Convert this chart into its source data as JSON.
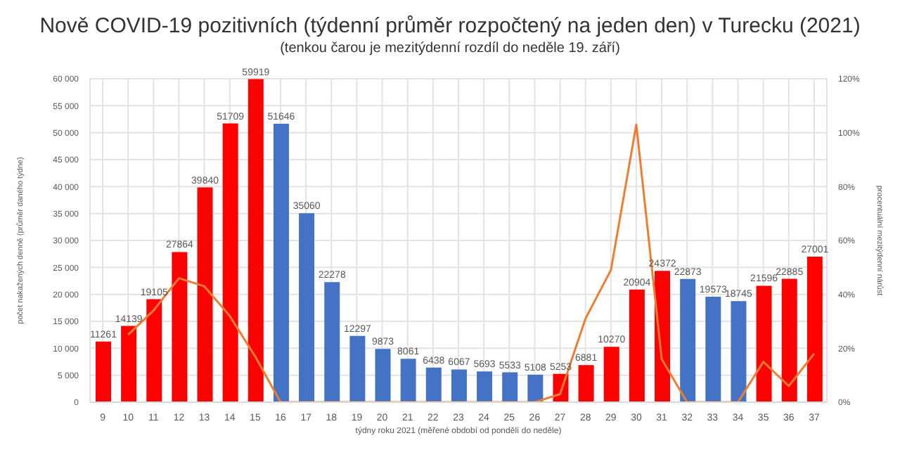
{
  "chart_data": {
    "type": "bar",
    "title": "Nově COVID-19 pozitivních (týdenní průměr rozpočtený na jeden den) v Turecku (2021)",
    "subtitle": "(tenkou čarou je mezitýdenní rozdíl do neděle 19. září)",
    "xlabel": "týdny roku 2021 (měřené období od pondělí do neděle)",
    "ylabel": "počet nakažených denně (průměr daného týdne)",
    "y2label": "procentuální mezitýdenní nárůst",
    "categories": [
      "9",
      "10",
      "11",
      "12",
      "13",
      "14",
      "15",
      "16",
      "17",
      "18",
      "19",
      "20",
      "21",
      "22",
      "23",
      "24",
      "25",
      "26",
      "27",
      "28",
      "29",
      "30",
      "31",
      "32",
      "33",
      "34",
      "35",
      "36",
      "37"
    ],
    "series": [
      {
        "colors": [
          "#ff0000",
          "#ff0000",
          "#ff0000",
          "#ff0000",
          "#ff0000",
          "#ff0000",
          "#ff0000",
          "#4472c4",
          "#4472c4",
          "#4472c4",
          "#4472c4",
          "#4472c4",
          "#4472c4",
          "#4472c4",
          "#4472c4",
          "#4472c4",
          "#4472c4",
          "#4472c4",
          "#ff0000",
          "#ff0000",
          "#ff0000",
          "#ff0000",
          "#ff0000",
          "#4472c4",
          "#4472c4",
          "#4472c4",
          "#ff0000",
          "#ff0000",
          "#ff0000"
        ],
        "values": [
          11261,
          14139,
          19105,
          27864,
          39840,
          51709,
          59919,
          51646,
          35060,
          22278,
          12297,
          9873,
          8061,
          6438,
          6067,
          5693,
          5533,
          5108,
          5253,
          6881,
          10270,
          20904,
          24372,
          22873,
          19573,
          18745,
          21596,
          22885,
          27001
        ],
        "value_labels": [
          "11261",
          "14139",
          "19105",
          "27864",
          "39840",
          "51709",
          "59919",
          "51646",
          "35060",
          "22278",
          "12297",
          "9873",
          "8061",
          "6438",
          "6067",
          "5693",
          "5533",
          "5108",
          "5253",
          "6881",
          "10270",
          "20904",
          "24372",
          "22873",
          "19573",
          "18745",
          "21596",
          "22885",
          "27001"
        ]
      },
      {
        "type": "line",
        "axis": "y2",
        "color": "#ed7d31",
        "values": [
          null,
          25,
          34,
          46,
          43,
          32,
          17,
          0,
          0,
          0,
          0,
          0,
          0,
          0,
          0,
          0,
          0,
          0,
          3,
          31,
          49,
          103,
          16,
          0,
          0,
          0,
          15,
          6,
          18
        ]
      }
    ],
    "ylim": [
      0,
      60000
    ],
    "yticks": [
      0,
      {
        "value": 5000,
        "label": "5 000"
      },
      {
        "value": 10000,
        "label": "10 000"
      },
      {
        "value": 15000,
        "label": "15 000"
      },
      {
        "value": 20000,
        "label": "20 000"
      },
      {
        "value": 25000,
        "label": "25 000"
      },
      {
        "value": 30000,
        "label": "30 000"
      },
      {
        "value": 35000,
        "label": "35 000"
      },
      {
        "value": 40000,
        "label": "40 000"
      },
      {
        "value": 45000,
        "label": "45 000"
      },
      {
        "value": 50000,
        "label": "50 000"
      },
      {
        "value": 55000,
        "label": "55 000"
      },
      {
        "value": 60000,
        "label": "60 000"
      }
    ],
    "y2lim": [
      0,
      120
    ],
    "y2ticks": [
      {
        "value": 0,
        "label": "0%"
      },
      {
        "value": 20,
        "label": "20%"
      },
      {
        "value": 40,
        "label": "40%"
      },
      {
        "value": 60,
        "label": "60%"
      },
      {
        "value": 80,
        "label": "80%"
      },
      {
        "value": 100,
        "label": "100%"
      },
      {
        "value": 120,
        "label": "120%"
      }
    ],
    "grid": true,
    "marker": "none",
    "line_style": "solid"
  }
}
